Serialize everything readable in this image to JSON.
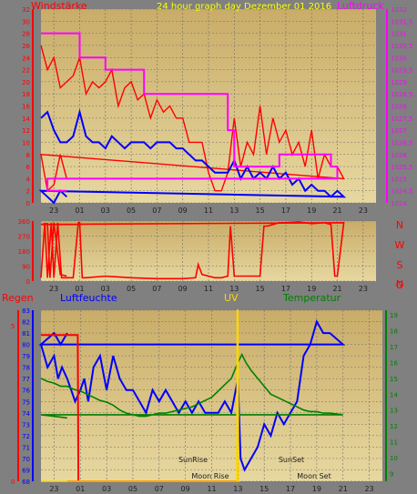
{
  "header": {
    "left_label": "Windstärke",
    "center_label": "24 hour graph day   Dezember 01 2016",
    "right_label": "Luftdruck"
  },
  "footer_labels": {
    "regen": "Regen",
    "luftfeuchte": "Luftfeuchte",
    "uv": "UV",
    "temperatur": "Temperatur"
  },
  "colors": {
    "frame_bg": "#808080",
    "plot_bg_top": "#CFB26E",
    "plot_bg_bottom": "#E6D69C",
    "wind_gust": "#FF0000",
    "wind_avg": "#0000FF",
    "pressure": "#FF00FF",
    "humidity": "#0000FF",
    "temperature": "#008000",
    "rain": "#FF0000",
    "uv": "#FFD700",
    "compass_letters": "#FF0000"
  },
  "chart_data": [
    {
      "id": "wind_pressure",
      "type": "line",
      "xlabel": "",
      "x_ticks": [
        "23",
        "01",
        "03",
        "05",
        "07",
        "09",
        "11",
        "13",
        "15",
        "17",
        "19",
        "21",
        "23"
      ],
      "left_axis": {
        "label": "Windstärke",
        "ylim": [
          0,
          32
        ],
        "ticks": [
          0,
          2,
          4,
          6,
          8,
          10,
          12,
          14,
          16,
          18,
          20,
          22,
          24,
          26,
          28,
          30,
          32
        ]
      },
      "right_axis": {
        "label": "Luftdruck",
        "ylim": [
          1024,
          1032
        ],
        "ticks": [
          "1024",
          "1024,5",
          "1025",
          "1025,5",
          "1026",
          "1026,5",
          "1027",
          "1027,5",
          "1028",
          "1028,5",
          "1029",
          "1029,5",
          "1030",
          "1030,5",
          "1031",
          "1031,5",
          "1032"
        ]
      },
      "series": [
        {
          "name": "Windstärke",
          "axis": "left",
          "kind": "gust",
          "x": [
            22.0,
            22.5,
            23.0,
            23.5,
            0.0,
            0.5,
            1.0,
            1.5,
            2.0,
            2.5,
            3.0,
            3.5,
            4.0,
            4.5,
            5.0,
            5.5,
            6.0,
            6.5,
            7.0,
            7.5,
            8.0,
            8.5,
            9.0,
            9.5,
            10.0,
            10.5,
            11.0,
            11.5,
            12.0,
            12.5,
            13.0,
            13.5,
            14.0,
            14.5,
            15.0,
            15.5,
            16.0,
            16.5,
            17.0,
            17.5,
            18.0,
            18.5,
            19.0,
            19.5,
            20.0,
            20.5,
            21.0,
            21.5,
            22.0,
            22.5,
            23.0,
            23.5,
            24.0
          ],
          "values": [
            26,
            22,
            24,
            19,
            20,
            21,
            24,
            18,
            20,
            19,
            20,
            22,
            16,
            19,
            20,
            17,
            18,
            14,
            17,
            15,
            16,
            14,
            14,
            10,
            10,
            10,
            5,
            2,
            2,
            5,
            14,
            6,
            10,
            8,
            16,
            8,
            14,
            10,
            12,
            8,
            10,
            6,
            12,
            4,
            8,
            6,
            6,
            4,
            8,
            2,
            3,
            8,
            4
          ]
        },
        {
          "name": "Windstärke",
          "axis": "left",
          "kind": "average",
          "x": [
            22.0,
            22.5,
            23.0,
            23.5,
            0.0,
            0.5,
            1.0,
            1.5,
            2.0,
            2.5,
            3.0,
            3.5,
            4.0,
            4.5,
            5.0,
            5.5,
            6.0,
            6.5,
            7.0,
            7.5,
            8.0,
            8.5,
            9.0,
            9.5,
            10.0,
            10.5,
            11.0,
            11.5,
            12.0,
            12.5,
            13.0,
            13.5,
            14.0,
            14.5,
            15.0,
            15.5,
            16.0,
            16.5,
            17.0,
            17.5,
            18.0,
            18.5,
            19.0,
            19.5,
            20.0,
            20.5,
            21.0,
            21.5,
            22.0,
            22.5,
            23.0,
            23.5,
            24.0
          ],
          "values": [
            14,
            15,
            12,
            10,
            10,
            11,
            15,
            11,
            10,
            10,
            9,
            11,
            10,
            9,
            10,
            10,
            10,
            9,
            10,
            10,
            10,
            9,
            9,
            8,
            7,
            7,
            6,
            5,
            5,
            5,
            7,
            4,
            6,
            4,
            5,
            4,
            6,
            4,
            5,
            3,
            4,
            2,
            3,
            2,
            2,
            1,
            2,
            1,
            2,
            1,
            0,
            2,
            1
          ]
        },
        {
          "name": "Luftdruck",
          "axis": "right",
          "kind": "pressure",
          "x": [
            22.0,
            23.0,
            0.5,
            1.0,
            1.0,
            3.0,
            3.0,
            6.0,
            6.0,
            12.5,
            12.5,
            13.0,
            13.0,
            16.5,
            16.5,
            20.5,
            20.5,
            21.0,
            21.0,
            22.5,
            22.5,
            24.0
          ],
          "values": [
            1031.0,
            1031.0,
            1031.0,
            1031.0,
            1030.0,
            1030.0,
            1029.5,
            1029.5,
            1028.5,
            1028.5,
            1027.0,
            1027.0,
            1025.5,
            1025.5,
            1026.0,
            1026.0,
            1025.5,
            1025.5,
            1025.0,
            1025.0,
            1024.5,
            1024.5
          ]
        }
      ]
    },
    {
      "id": "wind_direction",
      "type": "line",
      "x_ticks": [
        "23",
        "01",
        "03",
        "05",
        "07",
        "09",
        "11",
        "13",
        "15",
        "17",
        "19",
        "21",
        "23"
      ],
      "left_axis": {
        "ylim": [
          0,
          360
        ],
        "ticks": [
          0,
          90,
          180,
          270,
          360
        ]
      },
      "right_axis": {
        "ticks": [
          "N",
          "W",
          "S",
          "O",
          "N"
        ]
      },
      "series": [
        {
          "name": "Windrichtung",
          "x": [
            22.0,
            22.3,
            22.5,
            22.8,
            23.0,
            23.3,
            23.6,
            0.0,
            0.5,
            0.9,
            1.0,
            1.2,
            1.5,
            3.0,
            5.0,
            7.0,
            9.0,
            10.0,
            10.2,
            10.5,
            11.0,
            11.5,
            12.0,
            12.5,
            12.7,
            13.0,
            13.5,
            14.0,
            14.5,
            15.0,
            15.3,
            15.6,
            16.0,
            16.5,
            17.0,
            18.0,
            19.0,
            20.0,
            20.5,
            20.8,
            21.0,
            21.5,
            22.0,
            22.5,
            22.7,
            23.0,
            23.5,
            24.0
          ],
          "values": [
            20,
            350,
            20,
            350,
            20,
            350,
            20,
            20,
            20,
            350,
            350,
            20,
            20,
            30,
            20,
            15,
            15,
            20,
            100,
            40,
            30,
            20,
            20,
            30,
            330,
            30,
            30,
            30,
            30,
            30,
            330,
            330,
            340,
            350,
            350,
            355,
            345,
            350,
            340,
            30,
            30,
            350,
            340,
            345,
            20,
            350,
            40,
            30
          ]
        }
      ]
    },
    {
      "id": "humidity_temperature",
      "type": "line",
      "x_ticks": [
        "23",
        "01",
        "03",
        "05",
        "07",
        "09",
        "11",
        "13",
        "15",
        "17",
        "19",
        "21",
        "23"
      ],
      "left_axis": {
        "label": "Luftfeuchte",
        "ylim": [
          68,
          83
        ],
        "ticks": [
          68,
          69,
          70,
          71,
          72,
          73,
          74,
          75,
          76,
          77,
          78,
          79,
          80,
          81,
          82,
          83
        ]
      },
      "rain_axis": {
        "label": "Regen",
        "ylim": [
          0,
          5.5
        ],
        "ticks": [
          0,
          5
        ]
      },
      "right_axis": {
        "label": "Temperatur",
        "ylim": [
          8.5,
          19.3
        ],
        "ticks": [
          9,
          10,
          11,
          12,
          13,
          14,
          15,
          16,
          17,
          18,
          19
        ]
      },
      "annotations": [
        "SunRise",
        "SunSet",
        "Moon Rise",
        "Moon Set"
      ],
      "series": [
        {
          "name": "Luftfeuchte",
          "axis": "left",
          "x": [
            22.0,
            22.5,
            23.0,
            23.3,
            23.6,
            0.0,
            0.3,
            0.6,
            1.0,
            1.3,
            1.6,
            2.0,
            2.5,
            3.0,
            3.5,
            4.0,
            4.5,
            5.0,
            5.5,
            6.0,
            6.5,
            7.0,
            7.5,
            8.0,
            8.5,
            9.0,
            9.5,
            10.0,
            10.5,
            11.0,
            11.5,
            12.0,
            12.5,
            13.0,
            13.2,
            13.5,
            14.0,
            14.5,
            15.0,
            15.5,
            16.0,
            16.5,
            17.0,
            17.5,
            18.0,
            18.5,
            19.0,
            19.5,
            20.0,
            21.0,
            22.0,
            23.0,
            23.5,
            24.0
          ],
          "values": [
            80,
            78,
            79,
            77,
            78,
            77,
            76,
            75,
            76,
            77,
            75,
            78,
            79,
            76,
            79,
            77,
            76,
            76,
            75,
            74,
            76,
            75,
            76,
            75,
            74,
            75,
            74,
            75,
            74,
            74,
            74,
            75,
            74,
            77,
            70,
            69,
            70,
            71,
            73,
            72,
            74,
            73,
            74,
            75,
            79,
            80,
            82,
            81,
            81,
            80,
            80,
            81,
            80,
            81
          ]
        },
        {
          "name": "Temperatur",
          "axis": "right",
          "x": [
            22.0,
            22.5,
            23.0,
            23.5,
            0.0,
            0.5,
            1.0,
            1.5,
            2.0,
            2.5,
            3.0,
            3.5,
            4.0,
            4.5,
            5.0,
            5.5,
            6.0,
            6.5,
            7.0,
            7.5,
            8.0,
            8.5,
            9.0,
            9.5,
            10.0,
            10.5,
            11.0,
            11.5,
            12.0,
            12.5,
            13.0,
            13.3,
            13.6,
            14.0,
            14.5,
            15.0,
            15.5,
            16.0,
            16.5,
            17.0,
            17.5,
            18.0,
            18.5,
            19.0,
            19.5,
            20.0,
            21.0,
            22.0,
            23.0,
            24.0
          ],
          "values": [
            15.0,
            14.8,
            14.7,
            14.5,
            14.5,
            14.3,
            14.2,
            14.0,
            13.8,
            13.6,
            13.5,
            13.3,
            13.0,
            12.8,
            12.7,
            12.6,
            12.6,
            12.7,
            12.8,
            12.8,
            12.9,
            13.0,
            13.1,
            13.2,
            13.4,
            13.6,
            13.8,
            14.2,
            14.6,
            15.0,
            16.0,
            16.5,
            16.0,
            15.5,
            15.0,
            14.5,
            14.0,
            13.8,
            13.6,
            13.4,
            13.2,
            13.0,
            12.9,
            12.9,
            12.8,
            12.8,
            12.7,
            12.7,
            12.6,
            12.5
          ]
        },
        {
          "name": "Regen",
          "axis": "rain",
          "x": [
            22.0,
            22.3,
            0.8,
            0.85,
            13.0,
            13.05,
            24.0
          ],
          "values": [
            4.7,
            4.7,
            4.7,
            0.0,
            0.0,
            0.0,
            0.0
          ]
        },
        {
          "name": "UV",
          "axis": "rain",
          "x": [
            22.0,
            12.9,
            12.95,
            13.0,
            13.05,
            24.0
          ],
          "values": [
            0,
            0,
            5.5,
            5.5,
            0,
            0
          ]
        }
      ]
    }
  ]
}
